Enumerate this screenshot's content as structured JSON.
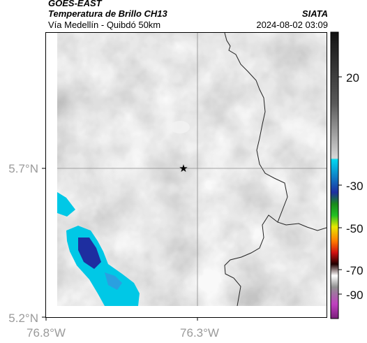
{
  "header": {
    "satellite": "GOES-EAST",
    "product": "Temperatura de Brillo CH13",
    "region": "Vía Medellín - Quibdó 50km",
    "institution": "SIATA",
    "datetime": "2024-08-02 03:09"
  },
  "map": {
    "lon_ticks": [
      "76.8°W",
      "76.3°W"
    ],
    "lat_ticks": [
      "5.7°N",
      "5.2°N"
    ],
    "marker_icon": "star-icon",
    "gridlines": true
  },
  "colorbar": {
    "labels": [
      "20",
      "-30",
      "-50",
      "-70",
      "-90"
    ],
    "colors": {
      "warm_top": "#111111",
      "gray_mid": "#9a9a9a",
      "cyan": "#00c8e6",
      "blue": "#1e2ea0",
      "green": "#22c022",
      "yellow": "#e8e800",
      "red": "#d01010",
      "magenta": "#c040c0"
    }
  }
}
